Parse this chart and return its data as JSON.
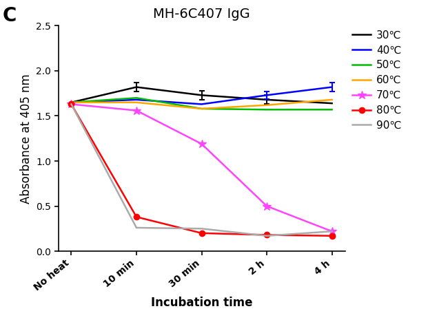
{
  "title": "MH-6C407 IgG",
  "xlabel": "Incubation time",
  "ylabel": "Absorbance at 405 nm",
  "x_labels": [
    "No heat",
    "10 min",
    "30 min",
    "2 h",
    "4 h"
  ],
  "x_positions": [
    0,
    1,
    2,
    3,
    4
  ],
  "series": [
    {
      "label": "30℃",
      "color": "#000000",
      "linestyle": "-",
      "marker": "None",
      "markersize": 0,
      "values": [
        1.65,
        1.82,
        1.73,
        1.68,
        1.64
      ],
      "errors": [
        0.0,
        0.05,
        0.05,
        0.05,
        0.0
      ]
    },
    {
      "label": "40℃",
      "color": "#0000FF",
      "linestyle": "-",
      "marker": "None",
      "markersize": 0,
      "values": [
        1.65,
        1.68,
        1.63,
        1.73,
        1.82
      ],
      "errors": [
        0.0,
        0.0,
        0.0,
        0.04,
        0.05
      ]
    },
    {
      "label": "50℃",
      "color": "#00BB00",
      "linestyle": "-",
      "marker": "None",
      "markersize": 0,
      "values": [
        1.65,
        1.7,
        1.58,
        1.57,
        1.57
      ],
      "errors": [
        0.0,
        0.0,
        0.0,
        0.0,
        0.0
      ]
    },
    {
      "label": "60℃",
      "color": "#FFA500",
      "linestyle": "-",
      "marker": "None",
      "markersize": 0,
      "values": [
        1.65,
        1.65,
        1.58,
        1.62,
        1.68
      ],
      "errors": [
        0.0,
        0.0,
        0.0,
        0.0,
        0.0
      ]
    },
    {
      "label": "70℃",
      "color": "#FF44FF",
      "linestyle": "-",
      "marker": "*",
      "markersize": 9,
      "values": [
        1.63,
        1.56,
        1.19,
        0.5,
        0.22
      ],
      "errors": [
        0.0,
        0.0,
        0.0,
        0.0,
        0.0
      ]
    },
    {
      "label": "80℃",
      "color": "#FF0000",
      "linestyle": "-",
      "marker": "o",
      "markersize": 6,
      "values": [
        1.63,
        0.38,
        0.2,
        0.18,
        0.17
      ],
      "errors": [
        0.0,
        0.0,
        0.0,
        0.0,
        0.0
      ]
    },
    {
      "label": "90℃",
      "color": "#AAAAAA",
      "linestyle": "-",
      "marker": "None",
      "markersize": 0,
      "values": [
        1.63,
        0.26,
        0.25,
        0.17,
        0.22
      ],
      "errors": [
        0.0,
        0.0,
        0.0,
        0.0,
        0.0
      ]
    }
  ],
  "ylim": [
    0.0,
    2.5
  ],
  "yticks": [
    0.0,
    0.5,
    1.0,
    1.5,
    2.0,
    2.5
  ],
  "panel_label": "C",
  "background_color": "#ffffff",
  "legend_fontsize": 11,
  "axis_fontsize": 12,
  "title_fontsize": 14,
  "tick_fontsize": 10,
  "linewidth": 1.8
}
